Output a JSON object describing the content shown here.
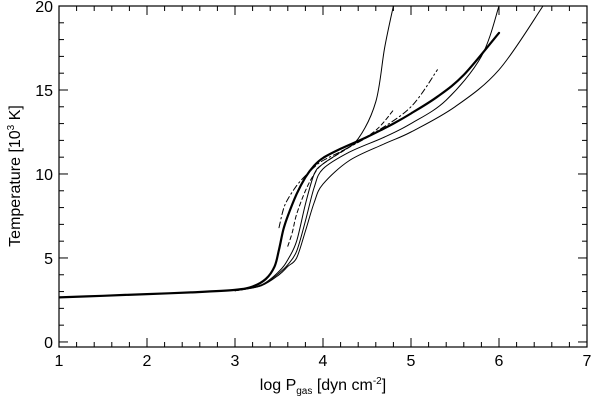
{
  "chart_data": {
    "type": "line",
    "xlabel": {
      "main": "log P",
      "sub": "gas",
      "rest": " [dyn cm",
      "sup": "-2",
      "end": "]"
    },
    "ylabel": {
      "main": "Temperature [10",
      "sup": "3",
      "end": " K]"
    },
    "xlim": [
      1,
      7
    ],
    "ylim": [
      -0.3,
      20
    ],
    "xticks": [
      1,
      2,
      3,
      4,
      5,
      6,
      7
    ],
    "yticks": [
      0,
      5,
      10,
      15,
      20
    ],
    "xtick_labels": [
      "1",
      "2",
      "3",
      "4",
      "5",
      "6",
      "7"
    ],
    "ytick_labels": [
      "0",
      "5",
      "10",
      "15",
      "20"
    ],
    "grid": false,
    "series": [
      {
        "style": "thick-solid",
        "x": [
          1.0,
          1.5,
          2.0,
          2.5,
          3.0,
          3.2,
          3.35,
          3.45,
          3.5,
          3.55,
          3.6,
          3.7,
          3.8,
          3.9,
          4.0,
          4.2,
          4.5,
          4.8,
          5.0,
          5.3,
          5.6,
          6.0
        ],
        "y": [
          2.65,
          2.75,
          2.85,
          2.95,
          3.1,
          3.3,
          3.75,
          4.5,
          5.5,
          6.7,
          7.5,
          8.8,
          9.8,
          10.5,
          10.95,
          11.5,
          12.2,
          13.0,
          13.6,
          14.6,
          15.9,
          18.4
        ]
      },
      {
        "style": "thin-solid",
        "x": [
          3.0,
          3.3,
          3.5,
          3.6,
          3.7,
          3.8,
          3.9,
          4.0,
          4.2,
          4.4,
          4.6,
          4.7,
          4.8
        ],
        "y": [
          3.05,
          3.4,
          4.2,
          4.9,
          6.0,
          8.2,
          10.0,
          10.6,
          11.3,
          12.1,
          14.3,
          17.5,
          20.0
        ]
      },
      {
        "style": "thin-solid",
        "x": [
          3.0,
          3.3,
          3.5,
          3.6,
          3.7,
          3.8,
          3.9,
          4.0,
          4.3,
          4.7,
          5.0,
          5.4,
          5.8,
          6.0
        ],
        "y": [
          3.05,
          3.35,
          4.1,
          4.6,
          5.4,
          7.2,
          9.2,
          10.3,
          11.3,
          12.2,
          13.0,
          14.4,
          17.0,
          20.0
        ]
      },
      {
        "style": "thin-solid",
        "x": [
          3.0,
          3.3,
          3.5,
          3.6,
          3.7,
          3.8,
          3.9,
          4.0,
          4.3,
          4.7,
          5.0,
          5.5,
          6.0,
          6.5
        ],
        "y": [
          3.05,
          3.35,
          4.0,
          4.5,
          5.0,
          6.6,
          8.3,
          9.4,
          10.8,
          11.8,
          12.5,
          14.0,
          16.2,
          20.0
        ]
      },
      {
        "style": "dash-dot",
        "x": [
          3.5,
          3.55,
          3.6,
          3.7,
          3.8,
          3.9,
          4.0,
          4.3,
          4.6,
          5.0,
          5.3
        ],
        "y": [
          6.8,
          7.9,
          8.5,
          9.3,
          9.9,
          10.4,
          10.8,
          11.6,
          12.5,
          14.0,
          16.2
        ]
      },
      {
        "style": "dashed",
        "x": [
          3.6,
          3.65,
          3.7,
          3.8,
          3.9,
          4.0,
          4.3,
          4.6,
          4.8
        ],
        "y": [
          5.7,
          6.5,
          7.6,
          9.0,
          10.0,
          10.6,
          11.6,
          12.6,
          13.8
        ]
      }
    ]
  }
}
